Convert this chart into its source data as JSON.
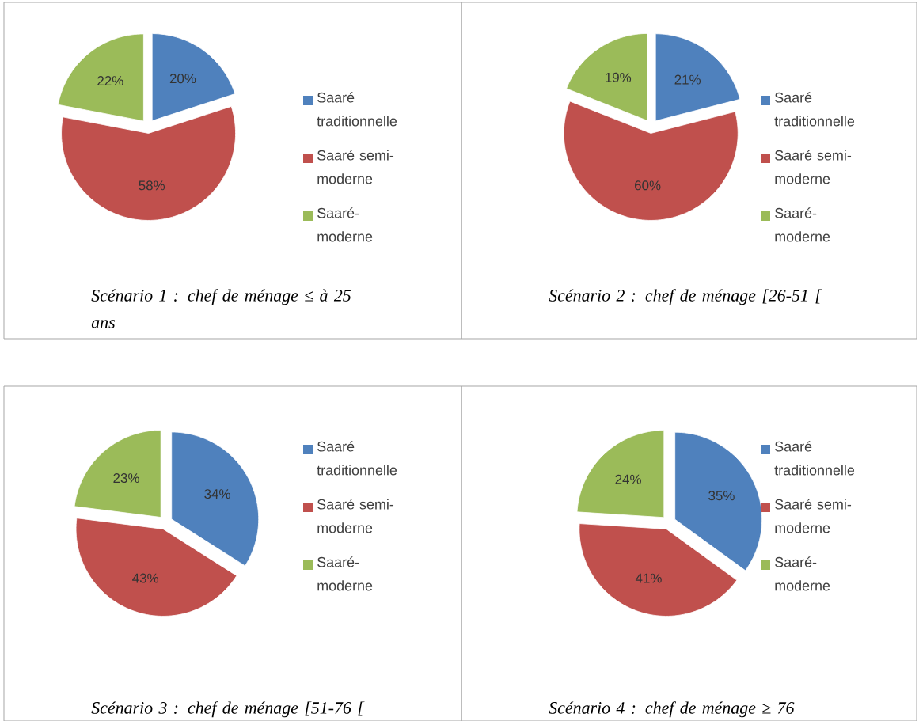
{
  "chart_data": [
    {
      "type": "pie",
      "title": "Scénario 1 : chef de ménage ≤ à 25 ans",
      "categories": [
        "Saaré traditionnelle",
        "Saaré semi-moderne",
        "Saaré-moderne"
      ],
      "values": [
        20,
        58,
        22
      ],
      "value_labels": [
        "20%",
        "58%",
        "22%"
      ],
      "colors": [
        "#4f81bd",
        "#c0504d",
        "#9bbb59"
      ],
      "legend": "right"
    },
    {
      "type": "pie",
      "title": "Scénario 2 : chef de ménage [26-51 [",
      "categories": [
        "Saaré traditionnelle",
        "Saaré semi-moderne",
        "Saaré-moderne"
      ],
      "values": [
        21,
        60,
        19
      ],
      "value_labels": [
        "21%",
        "60%",
        "19%"
      ],
      "colors": [
        "#4f81bd",
        "#c0504d",
        "#9bbb59"
      ],
      "legend": "right"
    },
    {
      "type": "pie",
      "title": "Scénario 3 : chef de ménage [51-76 [",
      "categories": [
        "Saaré traditionnelle",
        "Saaré semi-moderne",
        "Saaré-moderne"
      ],
      "values": [
        34,
        43,
        23
      ],
      "value_labels": [
        "34%",
        "43%",
        "23%"
      ],
      "colors": [
        "#4f81bd",
        "#c0504d",
        "#9bbb59"
      ],
      "legend": "right"
    },
    {
      "type": "pie",
      "title": "Scénario 4 : chef de ménage ≥ 76",
      "categories": [
        "Saaré traditionnelle",
        "Saaré semi-moderne",
        "Saaré-moderne"
      ],
      "values": [
        35,
        41,
        24
      ],
      "value_labels": [
        "35%",
        "41%",
        "24%"
      ],
      "colors": [
        "#4f81bd",
        "#c0504d",
        "#9bbb59"
      ],
      "legend": "right"
    }
  ]
}
